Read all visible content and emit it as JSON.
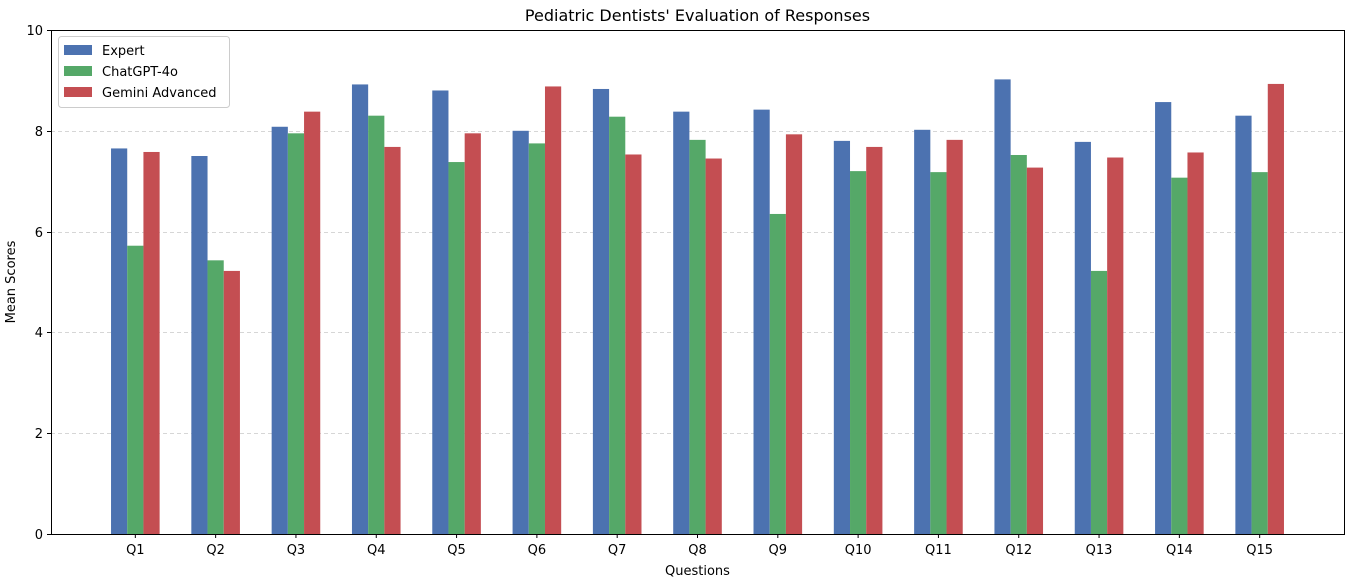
{
  "chart_data": {
    "type": "bar",
    "title": "Pediatric Dentists' Evaluation of Responses",
    "xlabel": "Questions",
    "ylabel": "Mean Scores",
    "ylim": [
      0,
      10
    ],
    "yticks": [
      0,
      2,
      4,
      6,
      8,
      10
    ],
    "grid": "y-dashed",
    "legend_position": "top-left",
    "categories": [
      "Q1",
      "Q2",
      "Q3",
      "Q4",
      "Q5",
      "Q6",
      "Q7",
      "Q8",
      "Q9",
      "Q10",
      "Q11",
      "Q12",
      "Q13",
      "Q14",
      "Q15"
    ],
    "series": [
      {
        "name": "Expert",
        "color": "#4c72b0",
        "values": [
          7.65,
          7.5,
          8.08,
          8.92,
          8.8,
          8.0,
          8.83,
          8.38,
          8.42,
          7.8,
          8.02,
          9.02,
          7.78,
          8.57,
          8.3
        ]
      },
      {
        "name": "ChatGPT-4o",
        "color": "#55a868",
        "values": [
          5.72,
          5.43,
          7.95,
          8.3,
          7.38,
          7.75,
          8.28,
          7.82,
          6.35,
          7.2,
          7.18,
          7.52,
          5.22,
          7.07,
          7.18
        ]
      },
      {
        "name": "Gemini Advanced",
        "color": "#c44e52",
        "values": [
          7.58,
          5.22,
          8.38,
          7.68,
          7.95,
          8.88,
          7.53,
          7.45,
          7.93,
          7.68,
          7.82,
          7.27,
          7.47,
          7.57,
          8.93
        ]
      }
    ]
  }
}
